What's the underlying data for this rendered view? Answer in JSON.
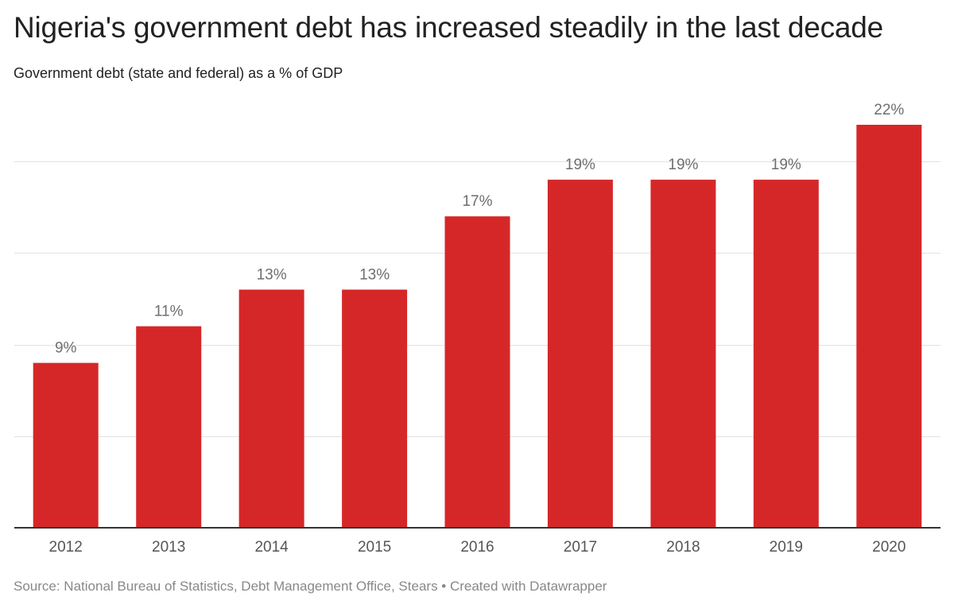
{
  "header": {
    "title": "Nigeria's government debt has increased steadily in the last decade",
    "subtitle": "Government debt (state and federal) as a % of GDP"
  },
  "footer": {
    "source": "Source: National Bureau of Statistics, Debt Management Office, Stears • Created with Datawrapper"
  },
  "colors": {
    "bar": "#d62728",
    "gridline": "#e2e2e2",
    "baseline": "#333333"
  },
  "chart_data": {
    "type": "bar",
    "title": "Nigeria's government debt has increased steadily in the last decade",
    "subtitle": "Government debt (state and federal) as a % of GDP",
    "xlabel": "",
    "ylabel": "",
    "categories": [
      "2012",
      "2013",
      "2014",
      "2015",
      "2016",
      "2017",
      "2018",
      "2019",
      "2020"
    ],
    "values": [
      9,
      11,
      13,
      13,
      17,
      19,
      19,
      19,
      22
    ],
    "value_labels": [
      "9%",
      "11%",
      "13%",
      "13%",
      "17%",
      "19%",
      "19%",
      "19%",
      "22%"
    ],
    "ylim": [
      0,
      22
    ],
    "gridlines": [
      5,
      10,
      15,
      20
    ],
    "grid": true,
    "legend": "none"
  }
}
